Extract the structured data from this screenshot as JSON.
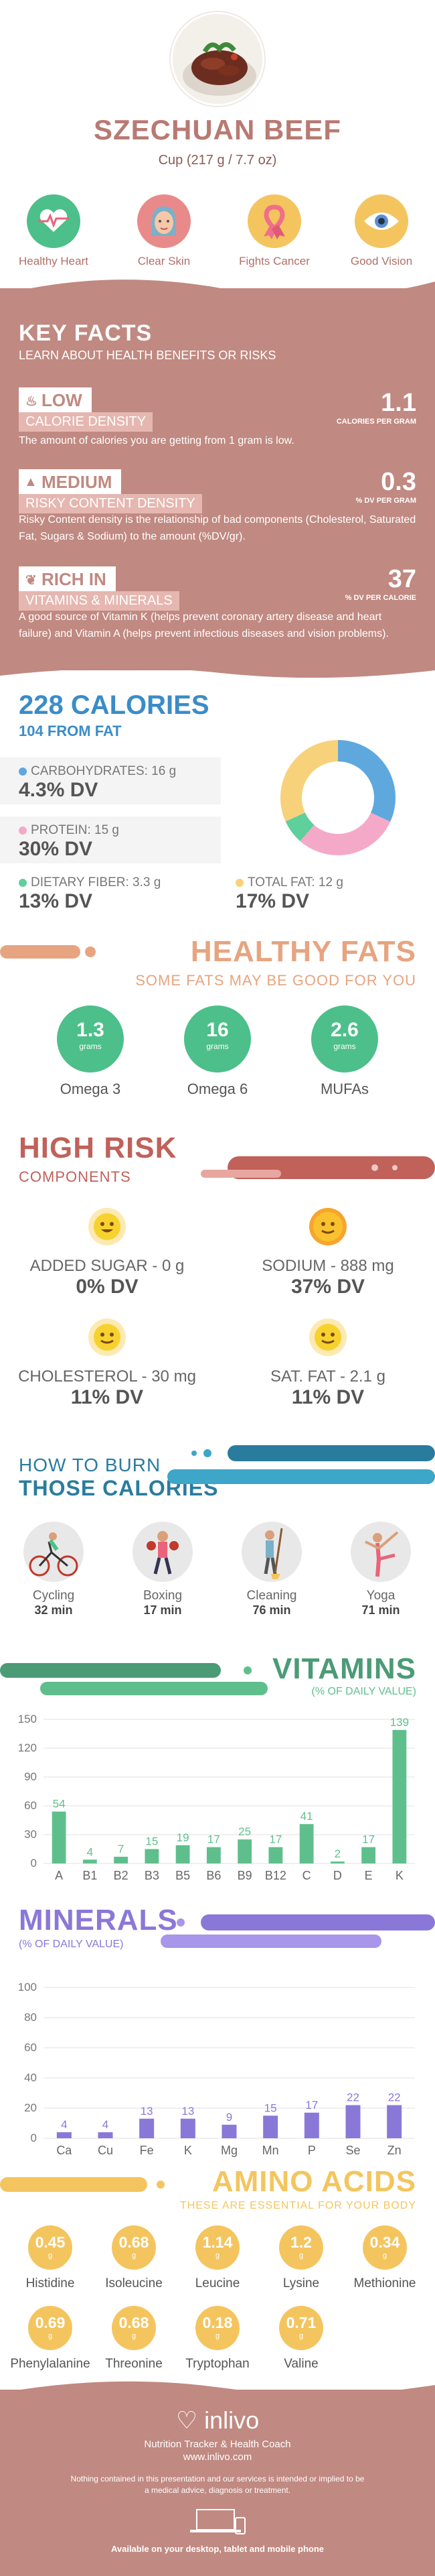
{
  "header": {
    "title": "SZECHUAN BEEF",
    "serving": "Cup (217 g / 7.7 oz)",
    "benefits": [
      {
        "label": "Healthy Heart",
        "icon": "heart-pulse-icon",
        "color": "#4dbf8a"
      },
      {
        "label": "Clear Skin",
        "icon": "face-icon",
        "color": "#e98a8a"
      },
      {
        "label": "Fights Cancer",
        "icon": "ribbon-icon",
        "color": "#f4c55f"
      },
      {
        "label": "Good Vision",
        "icon": "eye-icon",
        "color": "#f4c55f"
      }
    ]
  },
  "key_facts": {
    "title": "KEY FACTS",
    "subtitle": "LEARN ABOUT HEALTH BENEFITS OR RISKS",
    "items": [
      {
        "tag": "LOW",
        "label": "CALORIE DENSITY",
        "value": "1.1",
        "unit": "CALORIES PER GRAM",
        "desc": "The amount of calories you are getting from 1 gram is low."
      },
      {
        "tag": "MEDIUM",
        "label": "RISKY CONTENT DENSITY",
        "value": "0.3",
        "unit": "% DV PER GRAM",
        "desc": "Risky Content density is the relationship of bad components (Cholesterol, Saturated Fat, Sugars & Sodium) to the amount (%DV/gr)."
      },
      {
        "tag": "RICH IN",
        "label": "VITAMINS & MINERALS",
        "value": "37",
        "unit": "% DV PER CALORIE",
        "desc": "A good source of Vitamin K (helps prevent coronary artery disease and heart failure) and Vitamin A (helps prevent infectious diseases and vision problems)."
      }
    ]
  },
  "calories": {
    "title": "228 CALORIES",
    "subtitle": "104 FROM FAT",
    "macros": [
      {
        "name": "CARBOHYDRATES: 16 g",
        "dv": "4.3% DV",
        "color": "#5fa8dd"
      },
      {
        "name": "PROTEIN: 15 g",
        "dv": "30% DV",
        "color": "#f5a9c8"
      },
      {
        "name": "DIETARY FIBER: 3.3 g",
        "dv": "13% DV",
        "color": "#5fcf9b"
      },
      {
        "name": "TOTAL FAT: 12 g",
        "dv": "17% DV",
        "color": "#f7d27a"
      }
    ]
  },
  "healthy_fats": {
    "title": "HEALTHY FATS",
    "subtitle": "SOME FATS MAY BE GOOD FOR YOU",
    "items": [
      {
        "value": "1.3",
        "unit": "grams",
        "label": "Omega 3"
      },
      {
        "value": "16",
        "unit": "grams",
        "label": "Omega 6"
      },
      {
        "value": "2.6",
        "unit": "grams",
        "label": "MUFAs"
      }
    ]
  },
  "high_risk": {
    "title": "HIGH RISK",
    "subtitle": "COMPONENTS",
    "items": [
      {
        "name": "ADDED SUGAR - 0 g",
        "dv": "0% DV",
        "face": "#f7d22e"
      },
      {
        "name": "SODIUM - 888 mg",
        "dv": "37% DV",
        "face": "#f7a52e"
      },
      {
        "name": "CHOLESTEROL - 30 mg",
        "dv": "11% DV",
        "face": "#f7d22e"
      },
      {
        "name": "SAT. FAT - 2.1 g",
        "dv": "11% DV",
        "face": "#f7d22e"
      }
    ]
  },
  "burn": {
    "title_1": "HOW TO BURN",
    "title_2": "THOSE CALORIES",
    "items": [
      {
        "name": "Cycling",
        "time": "32 min"
      },
      {
        "name": "Boxing",
        "time": "17 min"
      },
      {
        "name": "Cleaning",
        "time": "76 min"
      },
      {
        "name": "Yoga",
        "time": "71 min"
      }
    ]
  },
  "chart_data": [
    {
      "type": "bar",
      "title": "VITAMINS",
      "subtitle": "(% OF DAILY VALUE)",
      "categories": [
        "A",
        "B1",
        "B2",
        "B3",
        "B5",
        "B6",
        "B9",
        "B12",
        "C",
        "D",
        "E",
        "K"
      ],
      "values": [
        54,
        4,
        7,
        15,
        19,
        17,
        25,
        17,
        41,
        2,
        17,
        139
      ],
      "ylim": [
        0,
        150
      ],
      "yticks": [
        0,
        30,
        60,
        90,
        120,
        150
      ],
      "color": "#5fbf8c"
    },
    {
      "type": "bar",
      "title": "MINERALS",
      "subtitle": "(% OF DAILY VALUE)",
      "categories": [
        "Ca",
        "Cu",
        "Fe",
        "K",
        "Mg",
        "Mn",
        "P",
        "Se",
        "Zn"
      ],
      "values": [
        4,
        4,
        13,
        13,
        9,
        15,
        17,
        22,
        22
      ],
      "ylim": [
        0,
        100
      ],
      "yticks": [
        0,
        20,
        40,
        60,
        80,
        100
      ],
      "color": "#8a78d8"
    }
  ],
  "amino": {
    "title": "AMINO ACIDS",
    "subtitle": "THESE ARE ESSENTIAL FOR YOUR BODY",
    "unit": "g",
    "items": [
      {
        "value": "0.45",
        "label": "Histidine"
      },
      {
        "value": "0.68",
        "label": "Isoleucine"
      },
      {
        "value": "1.14",
        "label": "Leucine"
      },
      {
        "value": "1.2",
        "label": "Lysine"
      },
      {
        "value": "0.34",
        "label": "Methionine"
      },
      {
        "value": "0.69",
        "label": "Phenylalanine"
      },
      {
        "value": "0.68",
        "label": "Threonine"
      },
      {
        "value": "0.18",
        "label": "Tryptophan"
      },
      {
        "value": "0.71",
        "label": "Valine"
      }
    ]
  },
  "footer": {
    "brand": "inlivo",
    "tagline": "Nutrition Tracker & Health Coach",
    "url": "www.inlivo.com",
    "disclaimer": "Nothing contained in this presentation and our services is intended or implied to be a medical advice, diagnosis or treatment.",
    "available": "Available on your desktop, tablet and mobile phone"
  }
}
